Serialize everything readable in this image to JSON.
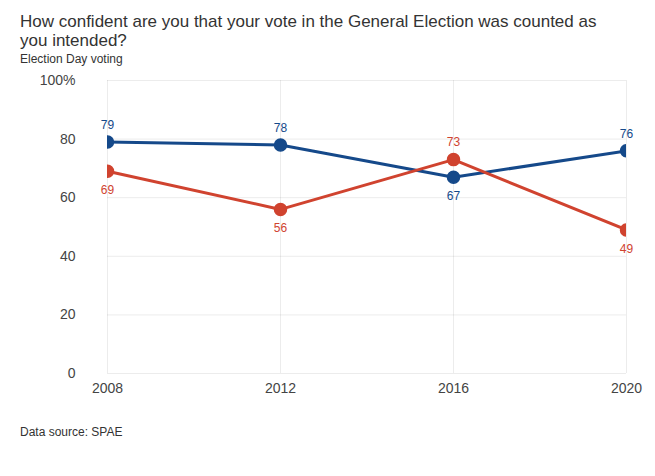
{
  "chart_data": {
    "type": "line",
    "title": "How confident are you that your vote in the General Election was counted as you intended?",
    "subtitle": "Election Day voting",
    "caption": "Data source: SPAE",
    "x": [
      2008,
      2012,
      2016,
      2020
    ],
    "xlim": [
      2008,
      2020
    ],
    "xticks": [
      2008,
      2012,
      2016,
      2020
    ],
    "ylim": [
      0,
      100
    ],
    "yticks": [
      0,
      20,
      40,
      60,
      80,
      {
        "value": 100,
        "label": "100%"
      }
    ],
    "grid": true,
    "data_labels": true,
    "marker": "circle",
    "series": [
      {
        "color": "#15498a",
        "values": [
          79,
          78,
          67,
          76
        ]
      },
      {
        "color": "#d0432f",
        "values": [
          69,
          56,
          73,
          49
        ]
      }
    ]
  }
}
